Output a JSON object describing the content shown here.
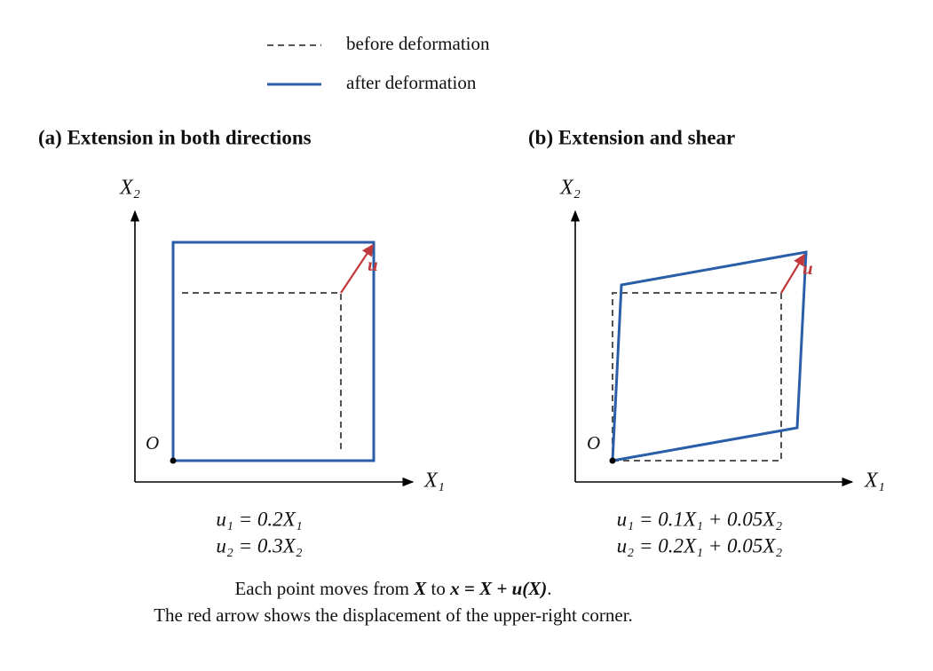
{
  "legend": {
    "items": [
      {
        "label": "before deformation"
      },
      {
        "label": "after deformation"
      }
    ]
  },
  "panels": [
    {
      "title": "(a) Extension in both directions",
      "x_axis_label": "X₁",
      "y_axis_label": "X₂",
      "origin_label": "O",
      "arrow_label": "u",
      "equations": [
        "u₁ = 0.2X₁",
        "u₂ = 0.3X₂"
      ]
    },
    {
      "title": "(b) Extension and shear",
      "x_axis_label": "X₁",
      "y_axis_label": "X₂",
      "origin_label": "O",
      "arrow_label": "u",
      "equations": [
        "u₁ = 0.1X₁ + 0.05X₂",
        "u₂ = 0.2X₁ + 0.05X₂"
      ]
    }
  ],
  "caption": {
    "line1": [
      "Each point moves from ",
      "X",
      " to ",
      "x = X + u(X)",
      "."
    ],
    "line2": "The red arrow shows the displacement of the upper-right corner."
  }
}
